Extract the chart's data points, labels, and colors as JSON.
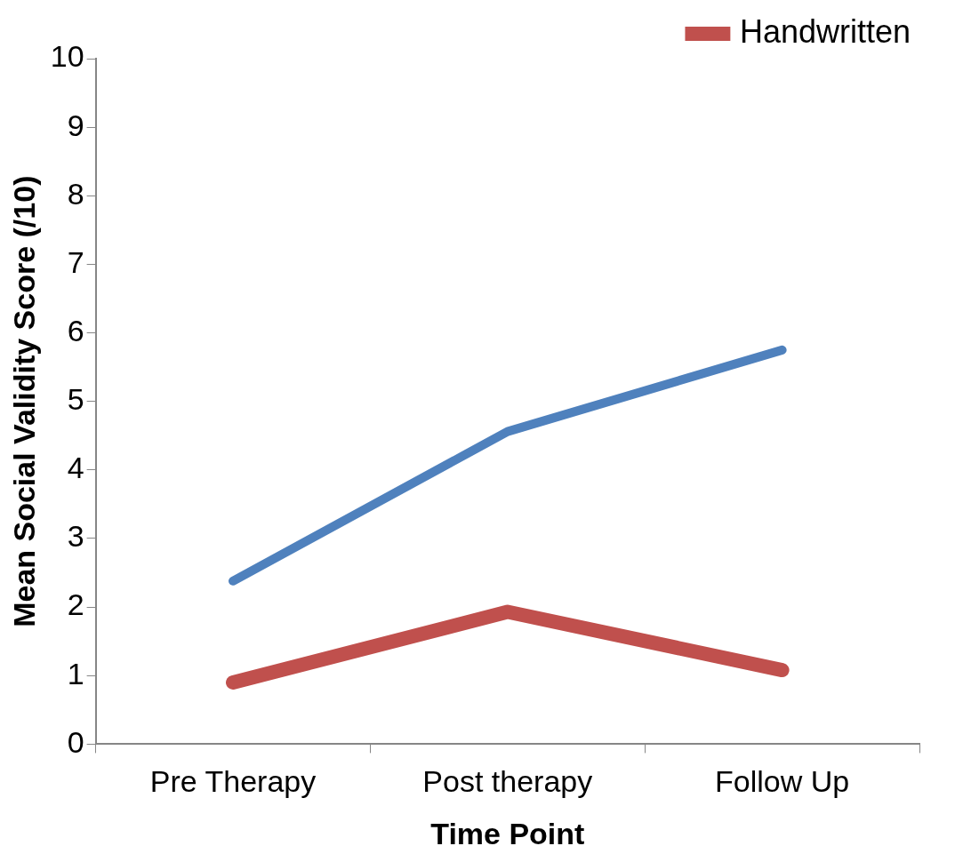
{
  "chart_data": {
    "type": "line",
    "xlabel": "Time Point",
    "ylabel": "Mean Social Validity Score (/10)",
    "categories": [
      "Pre Therapy",
      "Post therapy",
      "Follow Up"
    ],
    "series": [
      {
        "color": "#4f81bd",
        "values": [
          2.38,
          4.56,
          5.75
        ]
      },
      {
        "name": "Handwritten",
        "color": "#c0504d",
        "values": [
          0.9,
          1.93,
          1.08
        ]
      }
    ],
    "ylim": [
      0,
      10
    ],
    "yticks": [
      0,
      1,
      2,
      3,
      4,
      5,
      6,
      7,
      8,
      9,
      10
    ],
    "grid": false,
    "legend": "top right",
    "marker": "none",
    "line_style": "solid"
  }
}
